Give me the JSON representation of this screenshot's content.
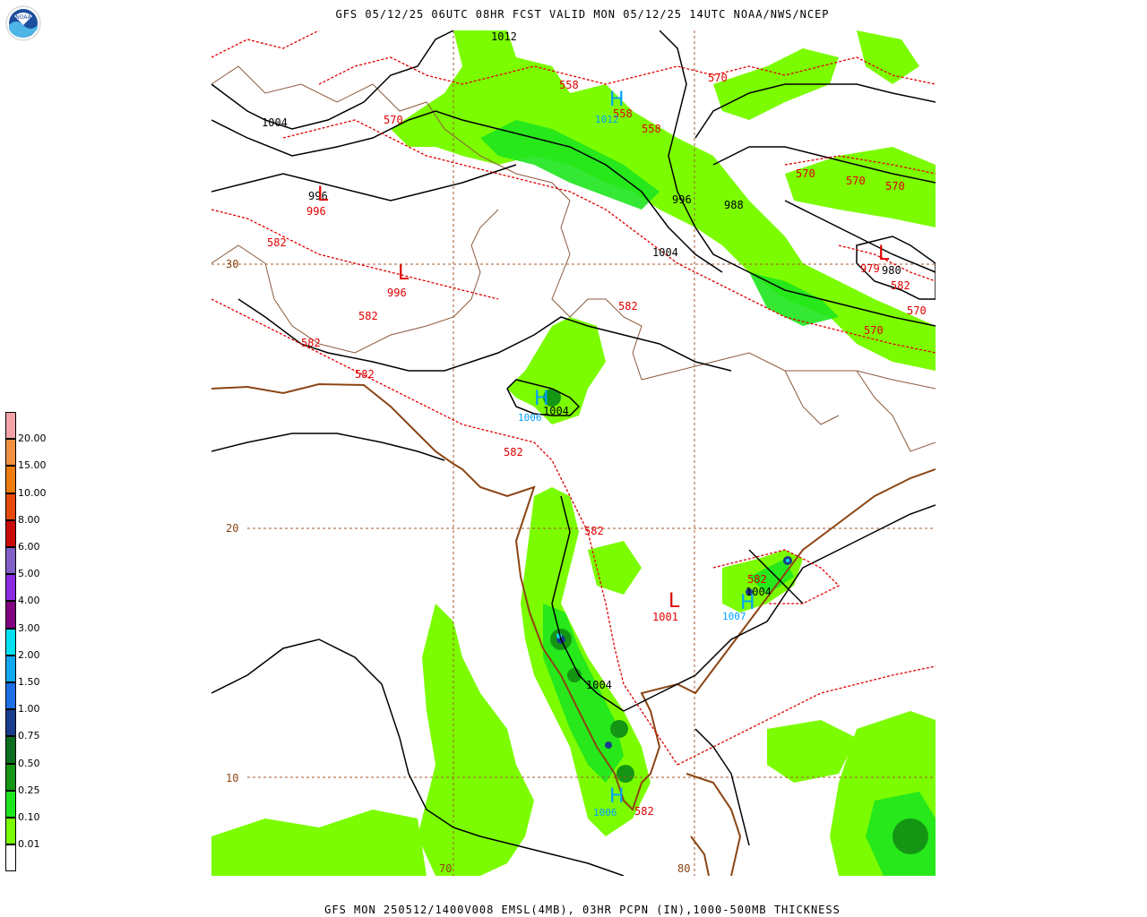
{
  "header": {
    "title": "GFS 05/12/25 06UTC 08HR FCST VALID MON 05/12/25 14UTC NOAA/NWS/NCEP"
  },
  "footer": {
    "title": "GFS MON 250512/1400V008 EMSL(4MB), 03HR PCPN (IN),1000-500MB THICKNESS"
  },
  "logo": {
    "text": "NOAA",
    "icon": "noaa-logo-icon"
  },
  "legend": {
    "labels": [
      "20.00",
      "15.00",
      "10.00",
      "8.00",
      "6.00",
      "5.00",
      "4.00",
      "3.00",
      "2.00",
      "1.50",
      "1.00",
      "0.75",
      "0.50",
      "0.25",
      "0.10",
      "0.01"
    ],
    "colors": [
      "#f5a3a8",
      "#f09040",
      "#ee7c0e",
      "#e64a0a",
      "#c80a0a",
      "#8060c8",
      "#8a2be2",
      "#800080",
      "#00e0f0",
      "#10a8f0",
      "#1e6ee6",
      "#1a3c8c",
      "#0a6e1e",
      "#149614",
      "#1ee61e",
      "#7cfc00",
      "#ffffff"
    ]
  },
  "grid": {
    "lat_labels": [
      "30",
      "20",
      "10"
    ],
    "lon_labels": [
      "70",
      "80"
    ]
  },
  "isobars": [
    {
      "text": "1012",
      "color": "#000000"
    },
    {
      "text": "1004",
      "color": "#000000"
    },
    {
      "text": "996",
      "color": "#000000"
    },
    {
      "text": "996",
      "color": "#000000"
    },
    {
      "text": "988",
      "color": "#000000"
    },
    {
      "text": "1004",
      "color": "#000000"
    },
    {
      "text": "980",
      "color": "#000000"
    },
    {
      "text": "1004",
      "color": "#000000"
    },
    {
      "text": "1004",
      "color": "#000000"
    },
    {
      "text": "1004",
      "color": "#000000"
    }
  ],
  "thickness_labels": [
    {
      "text": "558"
    },
    {
      "text": "558"
    },
    {
      "text": "558"
    },
    {
      "text": "570"
    },
    {
      "text": "570"
    },
    {
      "text": "570"
    },
    {
      "text": "570"
    },
    {
      "text": "570"
    },
    {
      "text": "570"
    },
    {
      "text": "582"
    },
    {
      "text": "582"
    },
    {
      "text": "582"
    },
    {
      "text": "582"
    },
    {
      "text": "582"
    },
    {
      "text": "582"
    },
    {
      "text": "582"
    },
    {
      "text": "582"
    },
    {
      "text": "582"
    },
    {
      "text": "582"
    },
    {
      "text": "570"
    },
    {
      "text": "996"
    },
    {
      "text": "996"
    },
    {
      "text": "979"
    },
    {
      "text": "1001"
    }
  ],
  "high_low": [
    {
      "symbol": "L",
      "color": "#e00000"
    },
    {
      "symbol": "L",
      "color": "#e00000"
    },
    {
      "symbol": "L",
      "color": "#e00000"
    },
    {
      "symbol": "L",
      "color": "#e00000"
    },
    {
      "symbol": "H",
      "color": "#00a0ff"
    },
    {
      "symbol": "H",
      "color": "#00a0ff"
    },
    {
      "symbol": "H",
      "color": "#00a0ff"
    },
    {
      "symbol": "H",
      "color": "#00a0ff"
    }
  ],
  "high_values": [
    {
      "text": "1012"
    },
    {
      "text": "1006"
    },
    {
      "text": "1007"
    },
    {
      "text": "1006"
    }
  ]
}
